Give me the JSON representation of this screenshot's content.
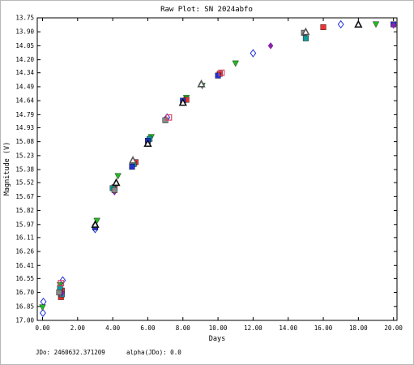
{
  "chart_data": {
    "type": "scatter",
    "title": "Raw Plot: SN 2024abfo",
    "xlabel": "Days",
    "ylabel": "Magnitude (V)",
    "xlim": [
      -0.3,
      20.2
    ],
    "ylim": [
      13.75,
      17.0
    ],
    "y_inverted": true,
    "grid": false,
    "x_ticks": [
      "0.00",
      "2.00",
      "4.00",
      "6.00",
      "8.00",
      "10.00",
      "12.00",
      "14.00",
      "16.00",
      "18.00",
      "20.00"
    ],
    "y_ticks": [
      "13.75",
      "13.90",
      "14.05",
      "14.20",
      "14.34",
      "14.49",
      "14.64",
      "14.79",
      "14.93",
      "15.08",
      "15.23",
      "15.38",
      "15.52",
      "15.67",
      "15.82",
      "15.97",
      "16.11",
      "16.26",
      "16.41",
      "16.55",
      "16.70",
      "16.85",
      "17.00"
    ],
    "series": [
      {
        "marker": "diamond-open",
        "color": "#2233dd",
        "points": [
          [
            0.05,
            16.8
          ],
          [
            0.02,
            16.92
          ],
          [
            1.15,
            16.57
          ],
          [
            3.0,
            16.02
          ],
          [
            7.1,
            14.82
          ],
          [
            12.0,
            14.13
          ],
          [
            17.0,
            13.82
          ]
        ]
      },
      {
        "marker": "triangle-down",
        "color": "#22bb22",
        "points": [
          [
            0.0,
            16.86
          ],
          [
            1.0,
            16.62
          ],
          [
            3.1,
            15.93
          ],
          [
            4.3,
            15.45
          ],
          [
            6.2,
            15.03
          ],
          [
            8.2,
            14.61
          ],
          [
            9.1,
            14.48
          ],
          [
            11.0,
            14.24
          ],
          [
            19.0,
            13.82
          ]
        ]
      },
      {
        "marker": "square",
        "color": "#ee3333",
        "points": [
          [
            1.05,
            16.75
          ],
          [
            1.1,
            16.68
          ],
          [
            4.1,
            15.57
          ],
          [
            5.3,
            15.3
          ],
          [
            8.2,
            14.63
          ],
          [
            10.1,
            14.35
          ],
          [
            16.0,
            13.85
          ]
        ]
      },
      {
        "marker": "square",
        "color": "#159a9a",
        "points": [
          [
            1.0,
            16.65
          ],
          [
            1.1,
            16.72
          ],
          [
            4.0,
            15.58
          ],
          [
            5.2,
            15.32
          ],
          [
            6.1,
            15.05
          ],
          [
            15.0,
            13.97
          ]
        ]
      },
      {
        "marker": "square",
        "color": "#2233cc",
        "points": [
          [
            3.0,
            16.0
          ],
          [
            5.1,
            15.35
          ],
          [
            6.0,
            15.07
          ],
          [
            8.0,
            14.64
          ],
          [
            10.0,
            14.37
          ],
          [
            20.0,
            13.82
          ]
        ]
      },
      {
        "marker": "triangle",
        "color": "#111111",
        "points": [
          [
            3.0,
            15.97
          ],
          [
            4.2,
            15.52
          ],
          [
            6.0,
            15.1
          ],
          [
            8.0,
            14.66
          ],
          [
            18.0,
            13.82
          ]
        ]
      },
      {
        "marker": "diamond",
        "color": "#8822aa",
        "points": [
          [
            1.1,
            16.71
          ],
          [
            4.1,
            15.62
          ],
          [
            7.0,
            14.84
          ],
          [
            13.0,
            14.05
          ],
          [
            20.0,
            13.83
          ]
        ]
      },
      {
        "marker": "square",
        "color": "#888888",
        "points": [
          [
            0.95,
            16.7
          ],
          [
            4.1,
            15.6
          ],
          [
            7.0,
            14.85
          ],
          [
            14.9,
            13.91
          ]
        ]
      },
      {
        "marker": "triangle",
        "color": "#555555",
        "points": [
          [
            5.15,
            15.28
          ],
          [
            9.05,
            14.46
          ],
          [
            15.0,
            13.9
          ]
        ]
      },
      {
        "marker": "square-open",
        "color": "#dd4466",
        "points": [
          [
            1.05,
            16.6
          ],
          [
            7.2,
            14.82
          ],
          [
            10.2,
            14.34
          ]
        ]
      }
    ]
  },
  "footer": {
    "jdo": "JDo: 2460632.371209",
    "alpha": "alpha(JDo): 0.0"
  }
}
